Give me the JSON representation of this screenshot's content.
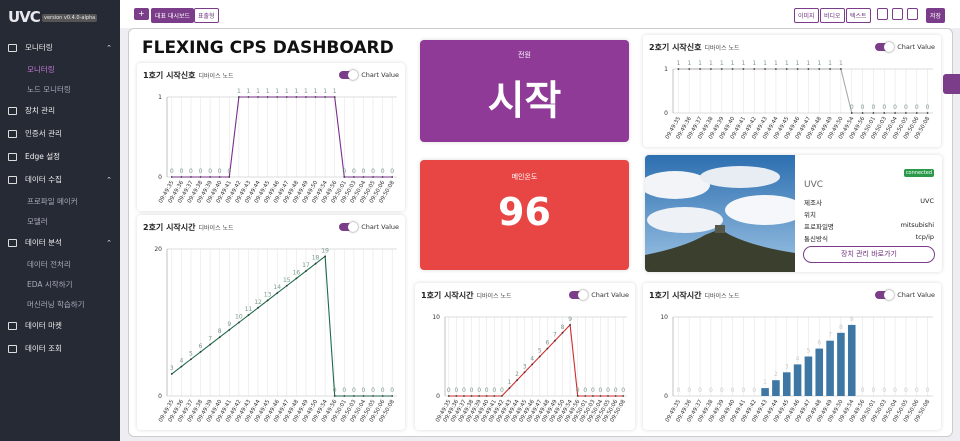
{
  "sidebar": {
    "logo": "UVC",
    "version": "version v0.4.0-alpha",
    "menu": [
      {
        "label": "모니터링",
        "children": [
          "모니터링",
          "노드 모니터링"
        ]
      },
      {
        "label": "장치 관리"
      },
      {
        "label": "인증서 관리"
      },
      {
        "label": "Edge 설정"
      },
      {
        "label": "데이터 수집",
        "children": [
          "프로파일 메이커",
          "모델러"
        ]
      },
      {
        "label": "데이터 분석",
        "children": [
          "데이터 전처리",
          "EDA 시작하기",
          "머신러닝 학습하기"
        ]
      },
      {
        "label": "데이터 마켓"
      },
      {
        "label": "데이터 조회"
      }
    ]
  },
  "toolbar": {
    "tabs": [
      "대표 대시보드",
      "표출형"
    ],
    "buttons": [
      "이미지",
      "비디오",
      "텍스트"
    ],
    "save": "저장"
  },
  "dashboard": {
    "title": "FLEXING CPS DASHBOARD"
  },
  "power_card": {
    "label": "전원",
    "value": "시작"
  },
  "temp_card": {
    "label": "메인온도",
    "value": 96
  },
  "device": {
    "status": "connected",
    "name": "UVC",
    "fields": [
      {
        "label": "제조사",
        "value": "UVC"
      },
      {
        "label": "위치"
      },
      {
        "label": "프로파일명",
        "value": "mitsubishi"
      },
      {
        "label": "통신방식",
        "value": "tcp/ip"
      }
    ],
    "button": "장치 관리 바로가기"
  },
  "chart_data": [
    {
      "type": "line",
      "title": "1호기 시작신호",
      "subtitle": "디바이스 노드",
      "toggle_label": "Chart Value",
      "color": "#7b2d8e",
      "categories": [
        "09:49:35",
        "09:49:36",
        "09:49:37",
        "09:49:38",
        "09:49:39",
        "09:49:40",
        "09:49:41",
        "09:49:42",
        "09:49:43",
        "09:49:44",
        "09:49:45",
        "09:49:46",
        "09:49:47",
        "09:49:48",
        "09:49:49",
        "09:49:50",
        "09:49:54",
        "09:49:56",
        "09:50:01",
        "09:50:03",
        "09:50:04",
        "09:50:05",
        "09:50:06",
        "09:50:08"
      ],
      "values": [
        0,
        0,
        0,
        0,
        0,
        0,
        0,
        1,
        1,
        1,
        1,
        1,
        1,
        1,
        1,
        1,
        1,
        1,
        0,
        0,
        0,
        0,
        0,
        0
      ],
      "ylim": [
        0,
        1
      ],
      "yticks": [
        0,
        1
      ]
    },
    {
      "type": "line",
      "title": "2호기 시작신호",
      "subtitle": "디바이스 노드",
      "toggle_label": "Chart Value",
      "color": "#a9a9a9",
      "categories": [
        "09:49:35",
        "09:49:36",
        "09:49:37",
        "09:49:38",
        "09:49:39",
        "09:49:40",
        "09:49:41",
        "09:49:42",
        "09:49:43",
        "09:49:44",
        "09:49:45",
        "09:49:46",
        "09:49:47",
        "09:49:48",
        "09:49:49",
        "09:49:50",
        "09:49:54",
        "09:49:56",
        "09:50:01",
        "09:50:03",
        "09:50:04",
        "09:50:05",
        "09:50:06",
        "09:50:08"
      ],
      "values": [
        1,
        1,
        1,
        1,
        1,
        1,
        1,
        1,
        1,
        1,
        1,
        1,
        1,
        1,
        1,
        1,
        0,
        0,
        0,
        0,
        0,
        0,
        0,
        0
      ],
      "ylim": [
        0,
        1
      ],
      "yticks": [
        0,
        1
      ]
    },
    {
      "type": "line",
      "title": "2호기 시작시간",
      "subtitle": "디바이스 노드",
      "toggle_label": "Chart Value",
      "color": "#1e6b4b",
      "categories": [
        "09:49:35",
        "09:49:36",
        "09:49:37",
        "09:49:38",
        "09:49:39",
        "09:49:40",
        "09:49:41",
        "09:49:42",
        "09:49:43",
        "09:49:44",
        "09:49:45",
        "09:49:46",
        "09:49:47",
        "09:49:48",
        "09:49:49",
        "09:49:50",
        "09:49:54",
        "09:49:56",
        "09:50:01",
        "09:50:03",
        "09:50:04",
        "09:50:05",
        "09:50:06",
        "09:50:08"
      ],
      "values": [
        3,
        4,
        5,
        6,
        7,
        8,
        9,
        10,
        11,
        12,
        13,
        14,
        15,
        16,
        17,
        18,
        19,
        0,
        0,
        0,
        0,
        0,
        0,
        0
      ],
      "ylim": [
        0,
        20
      ],
      "yticks": [
        0,
        20
      ]
    },
    {
      "type": "line",
      "title": "1호기 시작시간",
      "subtitle": "디바이스 노드",
      "toggle_label": "Chart Value",
      "color": "#d12c2c",
      "categories": [
        "09:49:35",
        "09:49:36",
        "09:49:37",
        "09:49:38",
        "09:49:39",
        "09:49:40",
        "09:49:41",
        "09:49:42",
        "09:49:43",
        "09:49:44",
        "09:49:45",
        "09:49:46",
        "09:49:47",
        "09:49:48",
        "09:49:49",
        "09:49:50",
        "09:49:54",
        "09:49:56",
        "09:50:01",
        "09:50:03",
        "09:50:04",
        "09:50:05",
        "09:50:06",
        "09:50:08"
      ],
      "values": [
        0,
        0,
        0,
        0,
        0,
        0,
        0,
        0,
        1,
        2,
        3,
        4,
        5,
        6,
        7,
        8,
        9,
        0,
        0,
        0,
        0,
        0,
        0,
        0
      ],
      "ylim": [
        0,
        10
      ],
      "yticks": [
        0,
        10
      ]
    },
    {
      "type": "bar",
      "title": "1호기 시작시간",
      "subtitle": "디바이스 노드",
      "toggle_label": "Chart Value",
      "color": "#3e77a3",
      "categories": [
        "09:49:35",
        "09:49:36",
        "09:49:37",
        "09:49:38",
        "09:49:39",
        "09:49:40",
        "09:49:41",
        "09:49:42",
        "09:49:43",
        "09:49:44",
        "09:49:45",
        "09:49:46",
        "09:49:47",
        "09:49:48",
        "09:49:49",
        "09:49:50",
        "09:49:54",
        "09:49:56",
        "09:50:01",
        "09:50:03",
        "09:50:04",
        "09:50:05",
        "09:50:06",
        "09:50:08"
      ],
      "values": [
        0,
        0,
        0,
        0,
        0,
        0,
        0,
        0,
        1,
        2,
        3,
        4,
        5,
        6,
        7,
        8,
        9,
        0,
        0,
        0,
        0,
        0,
        0,
        0
      ],
      "ylim": [
        0,
        10
      ],
      "yticks": [
        0,
        10
      ]
    }
  ]
}
